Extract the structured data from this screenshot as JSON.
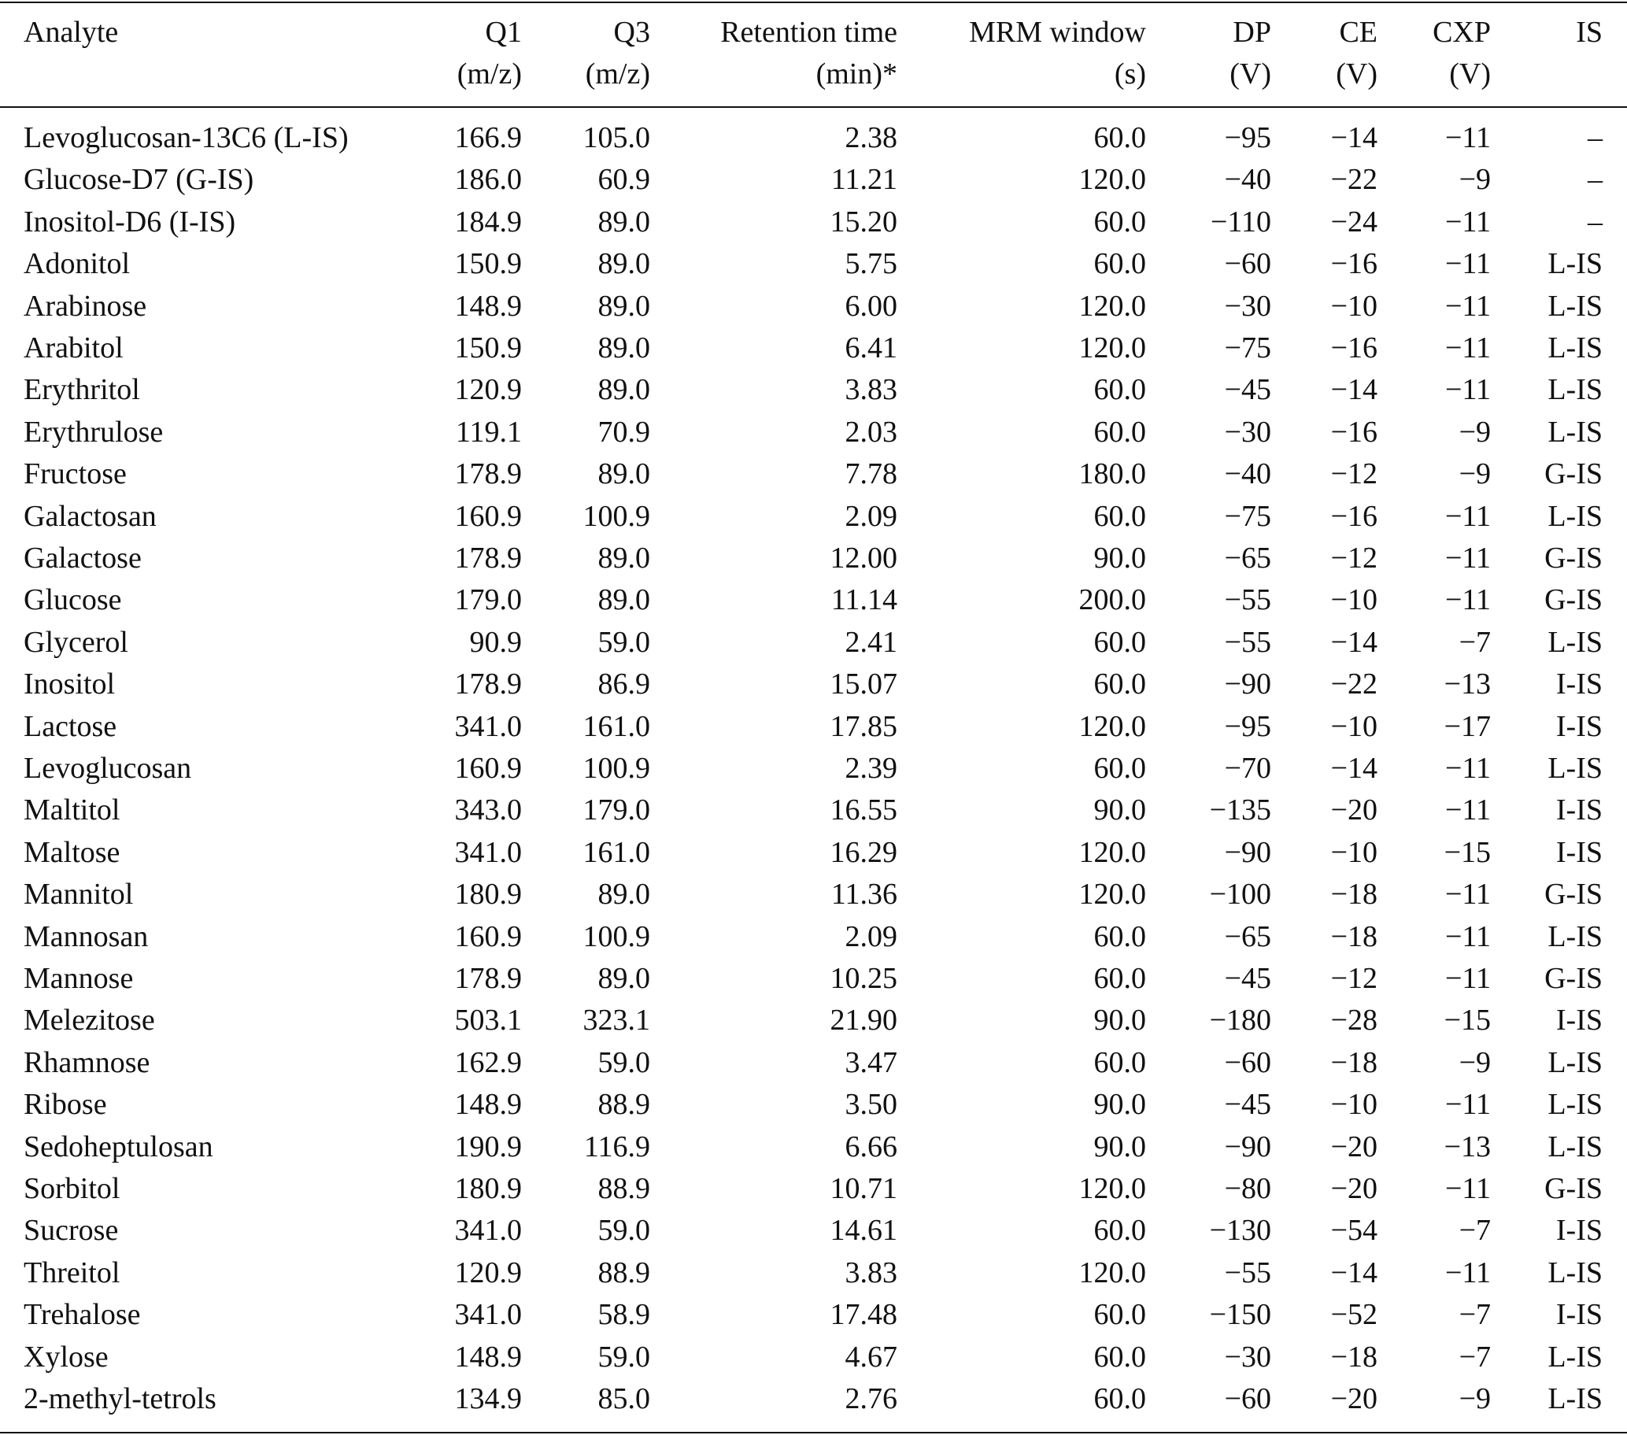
{
  "table": {
    "header": [
      [
        "Analyte"
      ],
      [
        "Q1",
        "(m/z)"
      ],
      [
        "Q3",
        "(m/z)"
      ],
      [
        "Retention time",
        "(min)*"
      ],
      [
        "MRM window",
        "(s)"
      ],
      [
        "DP",
        "(V)"
      ],
      [
        "CE",
        "(V)"
      ],
      [
        "CXP",
        "(V)"
      ],
      [
        "IS"
      ]
    ],
    "rows": [
      [
        "Levoglucosan-13C6 (L-IS)",
        "166.9",
        "105.0",
        "2.38",
        "60.0",
        "−95",
        "−14",
        "−11",
        "–"
      ],
      [
        "Glucose-D7 (G-IS)",
        "186.0",
        "60.9",
        "11.21",
        "120.0",
        "−40",
        "−22",
        "−9",
        "–"
      ],
      [
        "Inositol-D6 (I-IS)",
        "184.9",
        "89.0",
        "15.20",
        "60.0",
        "−110",
        "−24",
        "−11",
        "–"
      ],
      [
        "Adonitol",
        "150.9",
        "89.0",
        "5.75",
        "60.0",
        "−60",
        "−16",
        "−11",
        "L-IS"
      ],
      [
        "Arabinose",
        "148.9",
        "89.0",
        "6.00",
        "120.0",
        "−30",
        "−10",
        "−11",
        "L-IS"
      ],
      [
        "Arabitol",
        "150.9",
        "89.0",
        "6.41",
        "120.0",
        "−75",
        "−16",
        "−11",
        "L-IS"
      ],
      [
        "Erythritol",
        "120.9",
        "89.0",
        "3.83",
        "60.0",
        "−45",
        "−14",
        "−11",
        "L-IS"
      ],
      [
        "Erythrulose",
        "119.1",
        "70.9",
        "2.03",
        "60.0",
        "−30",
        "−16",
        "−9",
        "L-IS"
      ],
      [
        "Fructose",
        "178.9",
        "89.0",
        "7.78",
        "180.0",
        "−40",
        "−12",
        "−9",
        "G-IS"
      ],
      [
        "Galactosan",
        "160.9",
        "100.9",
        "2.09",
        "60.0",
        "−75",
        "−16",
        "−11",
        "L-IS"
      ],
      [
        "Galactose",
        "178.9",
        "89.0",
        "12.00",
        "90.0",
        "−65",
        "−12",
        "−11",
        "G-IS"
      ],
      [
        "Glucose",
        "179.0",
        "89.0",
        "11.14",
        "200.0",
        "−55",
        "−10",
        "−11",
        "G-IS"
      ],
      [
        "Glycerol",
        "90.9",
        "59.0",
        "2.41",
        "60.0",
        "−55",
        "−14",
        "−7",
        "L-IS"
      ],
      [
        "Inositol",
        "178.9",
        "86.9",
        "15.07",
        "60.0",
        "−90",
        "−22",
        "−13",
        "I-IS"
      ],
      [
        "Lactose",
        "341.0",
        "161.0",
        "17.85",
        "120.0",
        "−95",
        "−10",
        "−17",
        "I-IS"
      ],
      [
        "Levoglucosan",
        "160.9",
        "100.9",
        "2.39",
        "60.0",
        "−70",
        "−14",
        "−11",
        "L-IS"
      ],
      [
        "Maltitol",
        "343.0",
        "179.0",
        "16.55",
        "90.0",
        "−135",
        "−20",
        "−11",
        "I-IS"
      ],
      [
        "Maltose",
        "341.0",
        "161.0",
        "16.29",
        "120.0",
        "−90",
        "−10",
        "−15",
        "I-IS"
      ],
      [
        "Mannitol",
        "180.9",
        "89.0",
        "11.36",
        "120.0",
        "−100",
        "−18",
        "−11",
        "G-IS"
      ],
      [
        "Mannosan",
        "160.9",
        "100.9",
        "2.09",
        "60.0",
        "−65",
        "−18",
        "−11",
        "L-IS"
      ],
      [
        "Mannose",
        "178.9",
        "89.0",
        "10.25",
        "60.0",
        "−45",
        "−12",
        "−11",
        "G-IS"
      ],
      [
        "Melezitose",
        "503.1",
        "323.1",
        "21.90",
        "90.0",
        "−180",
        "−28",
        "−15",
        "I-IS"
      ],
      [
        "Rhamnose",
        "162.9",
        "59.0",
        "3.47",
        "60.0",
        "−60",
        "−18",
        "−9",
        "L-IS"
      ],
      [
        "Ribose",
        "148.9",
        "88.9",
        "3.50",
        "90.0",
        "−45",
        "−10",
        "−11",
        "L-IS"
      ],
      [
        "Sedoheptulosan",
        "190.9",
        "116.9",
        "6.66",
        "90.0",
        "−90",
        "−20",
        "−13",
        "L-IS"
      ],
      [
        "Sorbitol",
        "180.9",
        "88.9",
        "10.71",
        "120.0",
        "−80",
        "−20",
        "−11",
        "G-IS"
      ],
      [
        "Sucrose",
        "341.0",
        "59.0",
        "14.61",
        "60.0",
        "−130",
        "−54",
        "−7",
        "I-IS"
      ],
      [
        "Threitol",
        "120.9",
        "88.9",
        "3.83",
        "120.0",
        "−55",
        "−14",
        "−11",
        "L-IS"
      ],
      [
        "Trehalose",
        "341.0",
        "58.9",
        "17.48",
        "60.0",
        "−150",
        "−52",
        "−7",
        "I-IS"
      ],
      [
        "Xylose",
        "148.9",
        "59.0",
        "4.67",
        "60.0",
        "−30",
        "−18",
        "−7",
        "L-IS"
      ],
      [
        "2-methyl-tetrols",
        "134.9",
        "85.0",
        "2.76",
        "60.0",
        "−60",
        "−20",
        "−9",
        "L-IS"
      ]
    ]
  }
}
